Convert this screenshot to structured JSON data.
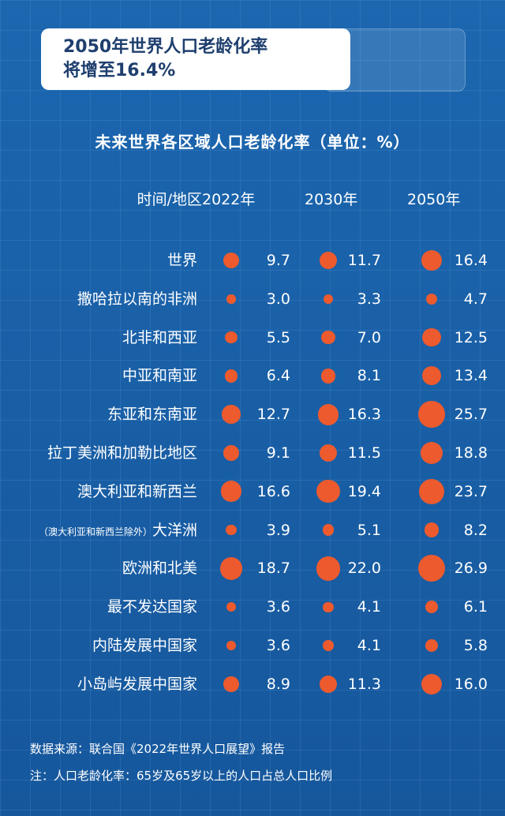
{
  "header": {
    "title_line1": "2050年世界人口老龄化率",
    "title_line2": "将增至16.4%"
  },
  "chart_data": {
    "type": "table",
    "title": "未来世界各区域人口老龄化率（单位：%）",
    "column_header_label": "时间/地区",
    "columns": [
      "2022年",
      "2030年",
      "2050年"
    ],
    "rows": [
      {
        "region": "世界",
        "note": "",
        "values": [
          9.7,
          11.7,
          16.4
        ]
      },
      {
        "region": "撒哈拉以南的非洲",
        "note": "",
        "values": [
          3.0,
          3.3,
          4.7
        ]
      },
      {
        "region": "北非和西亚",
        "note": "",
        "values": [
          5.5,
          7.0,
          12.5
        ]
      },
      {
        "region": "中亚和南亚",
        "note": "",
        "values": [
          6.4,
          8.1,
          13.4
        ]
      },
      {
        "region": "东亚和东南亚",
        "note": "",
        "values": [
          12.7,
          16.3,
          25.7
        ]
      },
      {
        "region": "拉丁美洲和加勒比地区",
        "note": "",
        "values": [
          9.1,
          11.5,
          18.8
        ]
      },
      {
        "region": "澳大利亚和新西兰",
        "note": "",
        "values": [
          16.6,
          19.4,
          23.7
        ]
      },
      {
        "region": "大洋洲",
        "note": "（澳大利亚和新西兰除外）",
        "values": [
          3.9,
          5.1,
          8.2
        ]
      },
      {
        "region": "欧洲和北美",
        "note": "",
        "values": [
          18.7,
          22.0,
          26.9
        ]
      },
      {
        "region": "最不发达国家",
        "note": "",
        "values": [
          3.6,
          4.1,
          6.1
        ]
      },
      {
        "region": "内陆发展中国家",
        "note": "",
        "values": [
          3.6,
          4.1,
          5.8
        ]
      },
      {
        "region": "小岛屿发展中国家",
        "note": "",
        "values": [
          8.9,
          11.3,
          16.0
        ]
      }
    ],
    "dot_color": "#ec5a2e"
  },
  "footer": {
    "source": "数据来源：联合国《2022年世界人口展望》报告",
    "note": "注：人口老龄化率：65岁及65岁以上的人口占总人口比例"
  },
  "colors": {
    "background": "#1a5fa6",
    "title_text": "#1f3f6e",
    "dot": "#ec5a2e"
  }
}
